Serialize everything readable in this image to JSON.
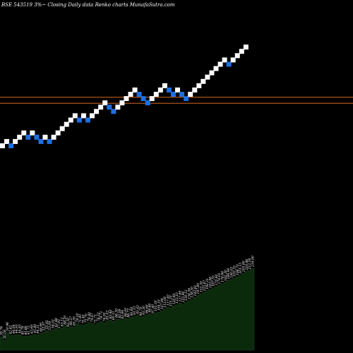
{
  "header": {
    "title": "BSE 543519 3%~  Closing Daily data  Renko  charts MunafaSutra.com"
  },
  "colors": {
    "background": "#000000",
    "up_brick": "#ffffff",
    "down_brick": "#1e6fe0",
    "reference_line": "#d2691e",
    "volume_fill": "#0b2a0b",
    "volume_edge": "#1f3d1f"
  },
  "chart_data": {
    "type": "renko",
    "title": "BSE 543519 3%~  Closing Daily data  Renko  charts MunafaSutra.com",
    "brick_size": "3%",
    "bricks": [
      {
        "level": 0,
        "dir": "up"
      },
      {
        "level": 1,
        "dir": "up"
      },
      {
        "level": 0,
        "dir": "down"
      },
      {
        "level": 1,
        "dir": "up"
      },
      {
        "level": 2,
        "dir": "up"
      },
      {
        "level": 3,
        "dir": "up"
      },
      {
        "level": 2,
        "dir": "down"
      },
      {
        "level": 3,
        "dir": "up"
      },
      {
        "level": 2,
        "dir": "down"
      },
      {
        "level": 1,
        "dir": "down"
      },
      {
        "level": 2,
        "dir": "up"
      },
      {
        "level": 1,
        "dir": "down"
      },
      {
        "level": 2,
        "dir": "up"
      },
      {
        "level": 3,
        "dir": "up"
      },
      {
        "level": 4,
        "dir": "up"
      },
      {
        "level": 5,
        "dir": "up"
      },
      {
        "level": 6,
        "dir": "up"
      },
      {
        "level": 7,
        "dir": "up"
      },
      {
        "level": 6,
        "dir": "down"
      },
      {
        "level": 7,
        "dir": "up"
      },
      {
        "level": 6,
        "dir": "down"
      },
      {
        "level": 7,
        "dir": "up"
      },
      {
        "level": 8,
        "dir": "up"
      },
      {
        "level": 9,
        "dir": "up"
      },
      {
        "level": 10,
        "dir": "up"
      },
      {
        "level": 9,
        "dir": "down"
      },
      {
        "level": 8,
        "dir": "down"
      },
      {
        "level": 9,
        "dir": "up"
      },
      {
        "level": 10,
        "dir": "up"
      },
      {
        "level": 11,
        "dir": "up"
      },
      {
        "level": 12,
        "dir": "up"
      },
      {
        "level": 13,
        "dir": "up"
      },
      {
        "level": 12,
        "dir": "down"
      },
      {
        "level": 11,
        "dir": "down"
      },
      {
        "level": 10,
        "dir": "down"
      },
      {
        "level": 11,
        "dir": "up"
      },
      {
        "level": 12,
        "dir": "up"
      },
      {
        "level": 13,
        "dir": "up"
      },
      {
        "level": 14,
        "dir": "up"
      },
      {
        "level": 13,
        "dir": "down"
      },
      {
        "level": 12,
        "dir": "down"
      },
      {
        "level": 13,
        "dir": "up"
      },
      {
        "level": 12,
        "dir": "down"
      },
      {
        "level": 11,
        "dir": "down"
      },
      {
        "level": 12,
        "dir": "up"
      },
      {
        "level": 13,
        "dir": "up"
      },
      {
        "level": 14,
        "dir": "up"
      },
      {
        "level": 15,
        "dir": "up"
      },
      {
        "level": 16,
        "dir": "up"
      },
      {
        "level": 17,
        "dir": "up"
      },
      {
        "level": 18,
        "dir": "up"
      },
      {
        "level": 19,
        "dir": "up"
      },
      {
        "level": 20,
        "dir": "up"
      },
      {
        "level": 19,
        "dir": "down"
      },
      {
        "level": 20,
        "dir": "up"
      },
      {
        "level": 21,
        "dir": "up"
      },
      {
        "level": 22,
        "dir": "up"
      },
      {
        "level": 23,
        "dir": "up"
      }
    ],
    "reference_lines": [
      {
        "level": 11.3
      },
      {
        "level": 9.9
      }
    ],
    "volume_labels": [
      "39.76",
      "30.58",
      "50.96",
      "42.82",
      "44.09",
      "44.93",
      "44.83",
      "40.76",
      "40.86",
      "41.72",
      "43.69",
      "45.80",
      "44.31",
      "48.99",
      "52.07",
      "55.92",
      "53.09",
      "58.02",
      "61.48",
      "57.93",
      "63.12",
      "68.20",
      "62.50",
      "66.27",
      "65.50",
      "74.10",
      "71.40",
      "70.40",
      "72.70",
      "76.80",
      "74.67",
      "71.71",
      "76.22",
      "79.71",
      "76.00",
      "81.02",
      "83.40",
      "80.15",
      "86.30",
      "85.09",
      "82.66",
      "88.00",
      "86.72",
      "90.60",
      "93.15",
      "95.42",
      "90.70",
      "93.30",
      "96.60",
      "99.80",
      "97.40",
      "102.30",
      "104.10",
      "107.94",
      "112.08",
      "117.40",
      "115.20",
      "120.60",
      "123.10",
      "127.80",
      "125.90",
      "130.12",
      "134.56",
      "138.20",
      "142.61",
      "147.80",
      "152.30",
      "155.67",
      "160.21",
      "163.98",
      "167.55",
      "170.40",
      "174.02",
      "178.66",
      "182.30",
      "186.90",
      "190.05",
      "193.33",
      "196.70",
      "201.15",
      "205.80",
      "210.46",
      "212.56",
      "218.90"
    ]
  }
}
